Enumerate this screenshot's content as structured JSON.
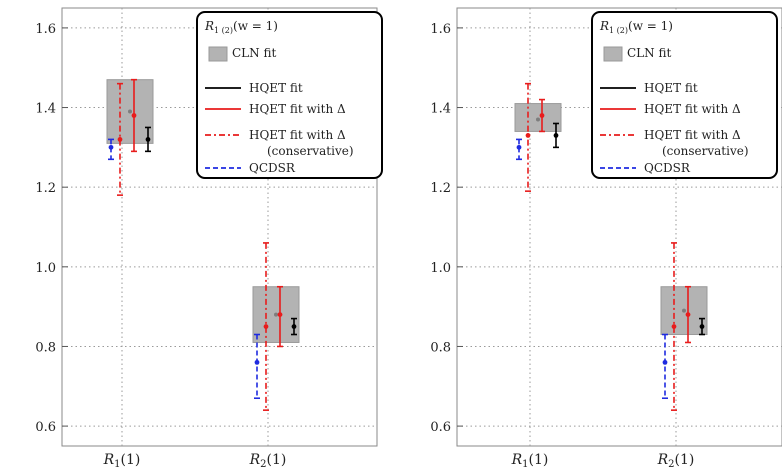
{
  "chart_data": [
    {
      "type": "scatter",
      "panel": "left",
      "ylim": [
        0.55,
        1.65
      ],
      "yticks": [
        "0.6",
        "0.8",
        "1.0",
        "1.2",
        "1.4",
        "1.6"
      ],
      "categories": [
        "R1(1)",
        "R2(1)"
      ],
      "grid": true,
      "legend_placement": "top-right",
      "legend": {
        "title_main": "R",
        "title_sub": "1 (2)",
        "title_rest": "(w = 1)",
        "entries": [
          "CLN fit",
          "HQET fit",
          "HQET fit with Δ",
          "HQET fit with Δ",
          "QCDSR"
        ],
        "entry_note": "(conservative)"
      },
      "cln_boxes": [
        {
          "category": "R1(1)",
          "center": 1.39,
          "low": 1.31,
          "high": 1.47
        },
        {
          "category": "R2(1)",
          "center": 0.88,
          "low": 0.81,
          "high": 0.95
        }
      ],
      "series": [
        {
          "name": "QCDSR",
          "color": "#1f2be0",
          "style": "dashed",
          "points": [
            {
              "category": "R1(1)",
              "y": 1.3,
              "low": 1.27,
              "high": 1.32
            },
            {
              "category": "R2(1)",
              "y": 0.76,
              "low": 0.67,
              "high": 0.83
            }
          ]
        },
        {
          "name": "HQET fit with Δ (conservative)",
          "color": "#e81c1c",
          "style": "dashdot",
          "points": [
            {
              "category": "R1(1)",
              "y": 1.32,
              "low": 1.18,
              "high": 1.46
            },
            {
              "category": "R2(1)",
              "y": 0.85,
              "low": 0.64,
              "high": 1.06
            }
          ]
        },
        {
          "name": "HQET fit with Δ",
          "color": "#e81c1c",
          "style": "solid",
          "points": [
            {
              "category": "R1(1)",
              "y": 1.38,
              "low": 1.29,
              "high": 1.47
            },
            {
              "category": "R2(1)",
              "y": 0.88,
              "low": 0.8,
              "high": 0.95
            }
          ]
        },
        {
          "name": "HQET fit",
          "color": "#000000",
          "style": "solid",
          "points": [
            {
              "category": "R1(1)",
              "y": 1.32,
              "low": 1.29,
              "high": 1.35
            },
            {
              "category": "R2(1)",
              "y": 0.85,
              "low": 0.83,
              "high": 0.87
            }
          ]
        }
      ]
    },
    {
      "type": "scatter",
      "panel": "right",
      "ylim": [
        0.55,
        1.65
      ],
      "yticks": [
        "0.6",
        "0.8",
        "1.0",
        "1.2",
        "1.4",
        "1.6"
      ],
      "categories": [
        "R1(1)",
        "R2(1)"
      ],
      "grid": true,
      "legend_placement": "top-right",
      "legend": {
        "title_main": "R",
        "title_sub": "1 (2)",
        "title_rest": "(w = 1)",
        "entries": [
          "CLN fit",
          "HQET fit",
          "HQET fit with Δ",
          "HQET fit with Δ",
          "QCDSR"
        ],
        "entry_note": "(conservative)"
      },
      "cln_boxes": [
        {
          "category": "R1(1)",
          "center": 1.37,
          "low": 1.34,
          "high": 1.41
        },
        {
          "category": "R2(1)",
          "center": 0.89,
          "low": 0.83,
          "high": 0.95
        }
      ],
      "series": [
        {
          "name": "QCDSR",
          "color": "#1f2be0",
          "style": "dashed",
          "points": [
            {
              "category": "R1(1)",
              "y": 1.3,
              "low": 1.27,
              "high": 1.32
            },
            {
              "category": "R2(1)",
              "y": 0.76,
              "low": 0.67,
              "high": 0.83
            }
          ]
        },
        {
          "name": "HQET fit with Δ (conservative)",
          "color": "#e81c1c",
          "style": "dashdot",
          "points": [
            {
              "category": "R1(1)",
              "y": 1.33,
              "low": 1.19,
              "high": 1.46
            },
            {
              "category": "R2(1)",
              "y": 0.85,
              "low": 0.64,
              "high": 1.06
            }
          ]
        },
        {
          "name": "HQET fit with Δ",
          "color": "#e81c1c",
          "style": "solid",
          "points": [
            {
              "category": "R1(1)",
              "y": 1.38,
              "low": 1.34,
              "high": 1.42
            },
            {
              "category": "R2(1)",
              "y": 0.88,
              "low": 0.81,
              "high": 0.95
            }
          ]
        },
        {
          "name": "HQET fit",
          "color": "#000000",
          "style": "solid",
          "points": [
            {
              "category": "R1(1)",
              "y": 1.33,
              "low": 1.3,
              "high": 1.36
            },
            {
              "category": "R2(1)",
              "y": 0.85,
              "low": 0.83,
              "high": 0.87
            }
          ]
        }
      ]
    }
  ]
}
